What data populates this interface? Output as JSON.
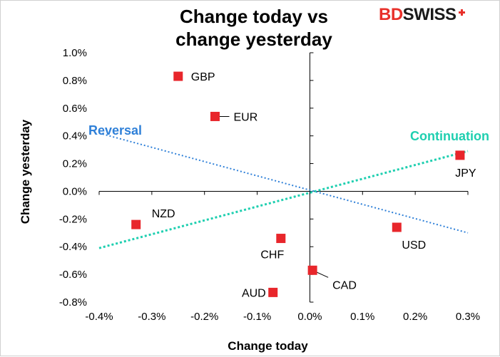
{
  "brand": {
    "part1": "BD",
    "part2": "SWISS",
    "color1": "#e8302a",
    "color2": "#1a1a1a"
  },
  "chart_data": {
    "type": "scatter",
    "title": "Change today vs\nchange yesterday",
    "xlabel": "Change today",
    "ylabel": "Change yesterday",
    "xlim": [
      -0.004,
      0.003
    ],
    "ylim": [
      -0.008,
      0.01
    ],
    "x_ticks": [
      -0.004,
      -0.003,
      -0.002,
      -0.001,
      0.0,
      0.001,
      0.002,
      0.003
    ],
    "x_tick_labels": [
      "-0.4%",
      "-0.3%",
      "-0.2%",
      "-0.1%",
      "0.0%",
      "0.1%",
      "0.2%",
      "0.3%"
    ],
    "y_ticks": [
      0.01,
      0.008,
      0.006,
      0.004,
      0.002,
      0.0,
      -0.002,
      -0.004,
      -0.006,
      -0.008
    ],
    "y_tick_labels": [
      "1.0%",
      "0.8%",
      "0.6%",
      "0.4%",
      "0.2%",
      "0.0%",
      "-0.2%",
      "-0.4%",
      "-0.6%",
      "-0.8%"
    ],
    "grid": false,
    "marker_color": "#e8262b",
    "points": [
      {
        "label": "GBP",
        "x": -0.0025,
        "y": 0.0083
      },
      {
        "label": "EUR",
        "x": -0.0018,
        "y": 0.0054
      },
      {
        "label": "JPY",
        "x": 0.00285,
        "y": 0.0026
      },
      {
        "label": "NZD",
        "x": -0.0033,
        "y": -0.0024
      },
      {
        "label": "CHF",
        "x": -0.00055,
        "y": -0.0034
      },
      {
        "label": "USD",
        "x": 0.00165,
        "y": -0.0026
      },
      {
        "label": "CAD",
        "x": 5e-05,
        "y": -0.0057
      },
      {
        "label": "AUD",
        "x": -0.0007,
        "y": -0.0073
      }
    ],
    "lines": [
      {
        "name": "Reversal",
        "color": "#2f80d8",
        "x": [
          -0.004,
          0.003
        ],
        "y": [
          0.0042,
          -0.003
        ]
      },
      {
        "name": "Continuation",
        "color": "#1fcfb0",
        "x": [
          -0.004,
          0.003
        ],
        "y": [
          -0.0041,
          0.0029
        ]
      }
    ],
    "annotations": [
      {
        "text": "Reversal",
        "color": "#2f80d8"
      },
      {
        "text": "Continuation",
        "color": "#1fcfb0"
      }
    ]
  }
}
